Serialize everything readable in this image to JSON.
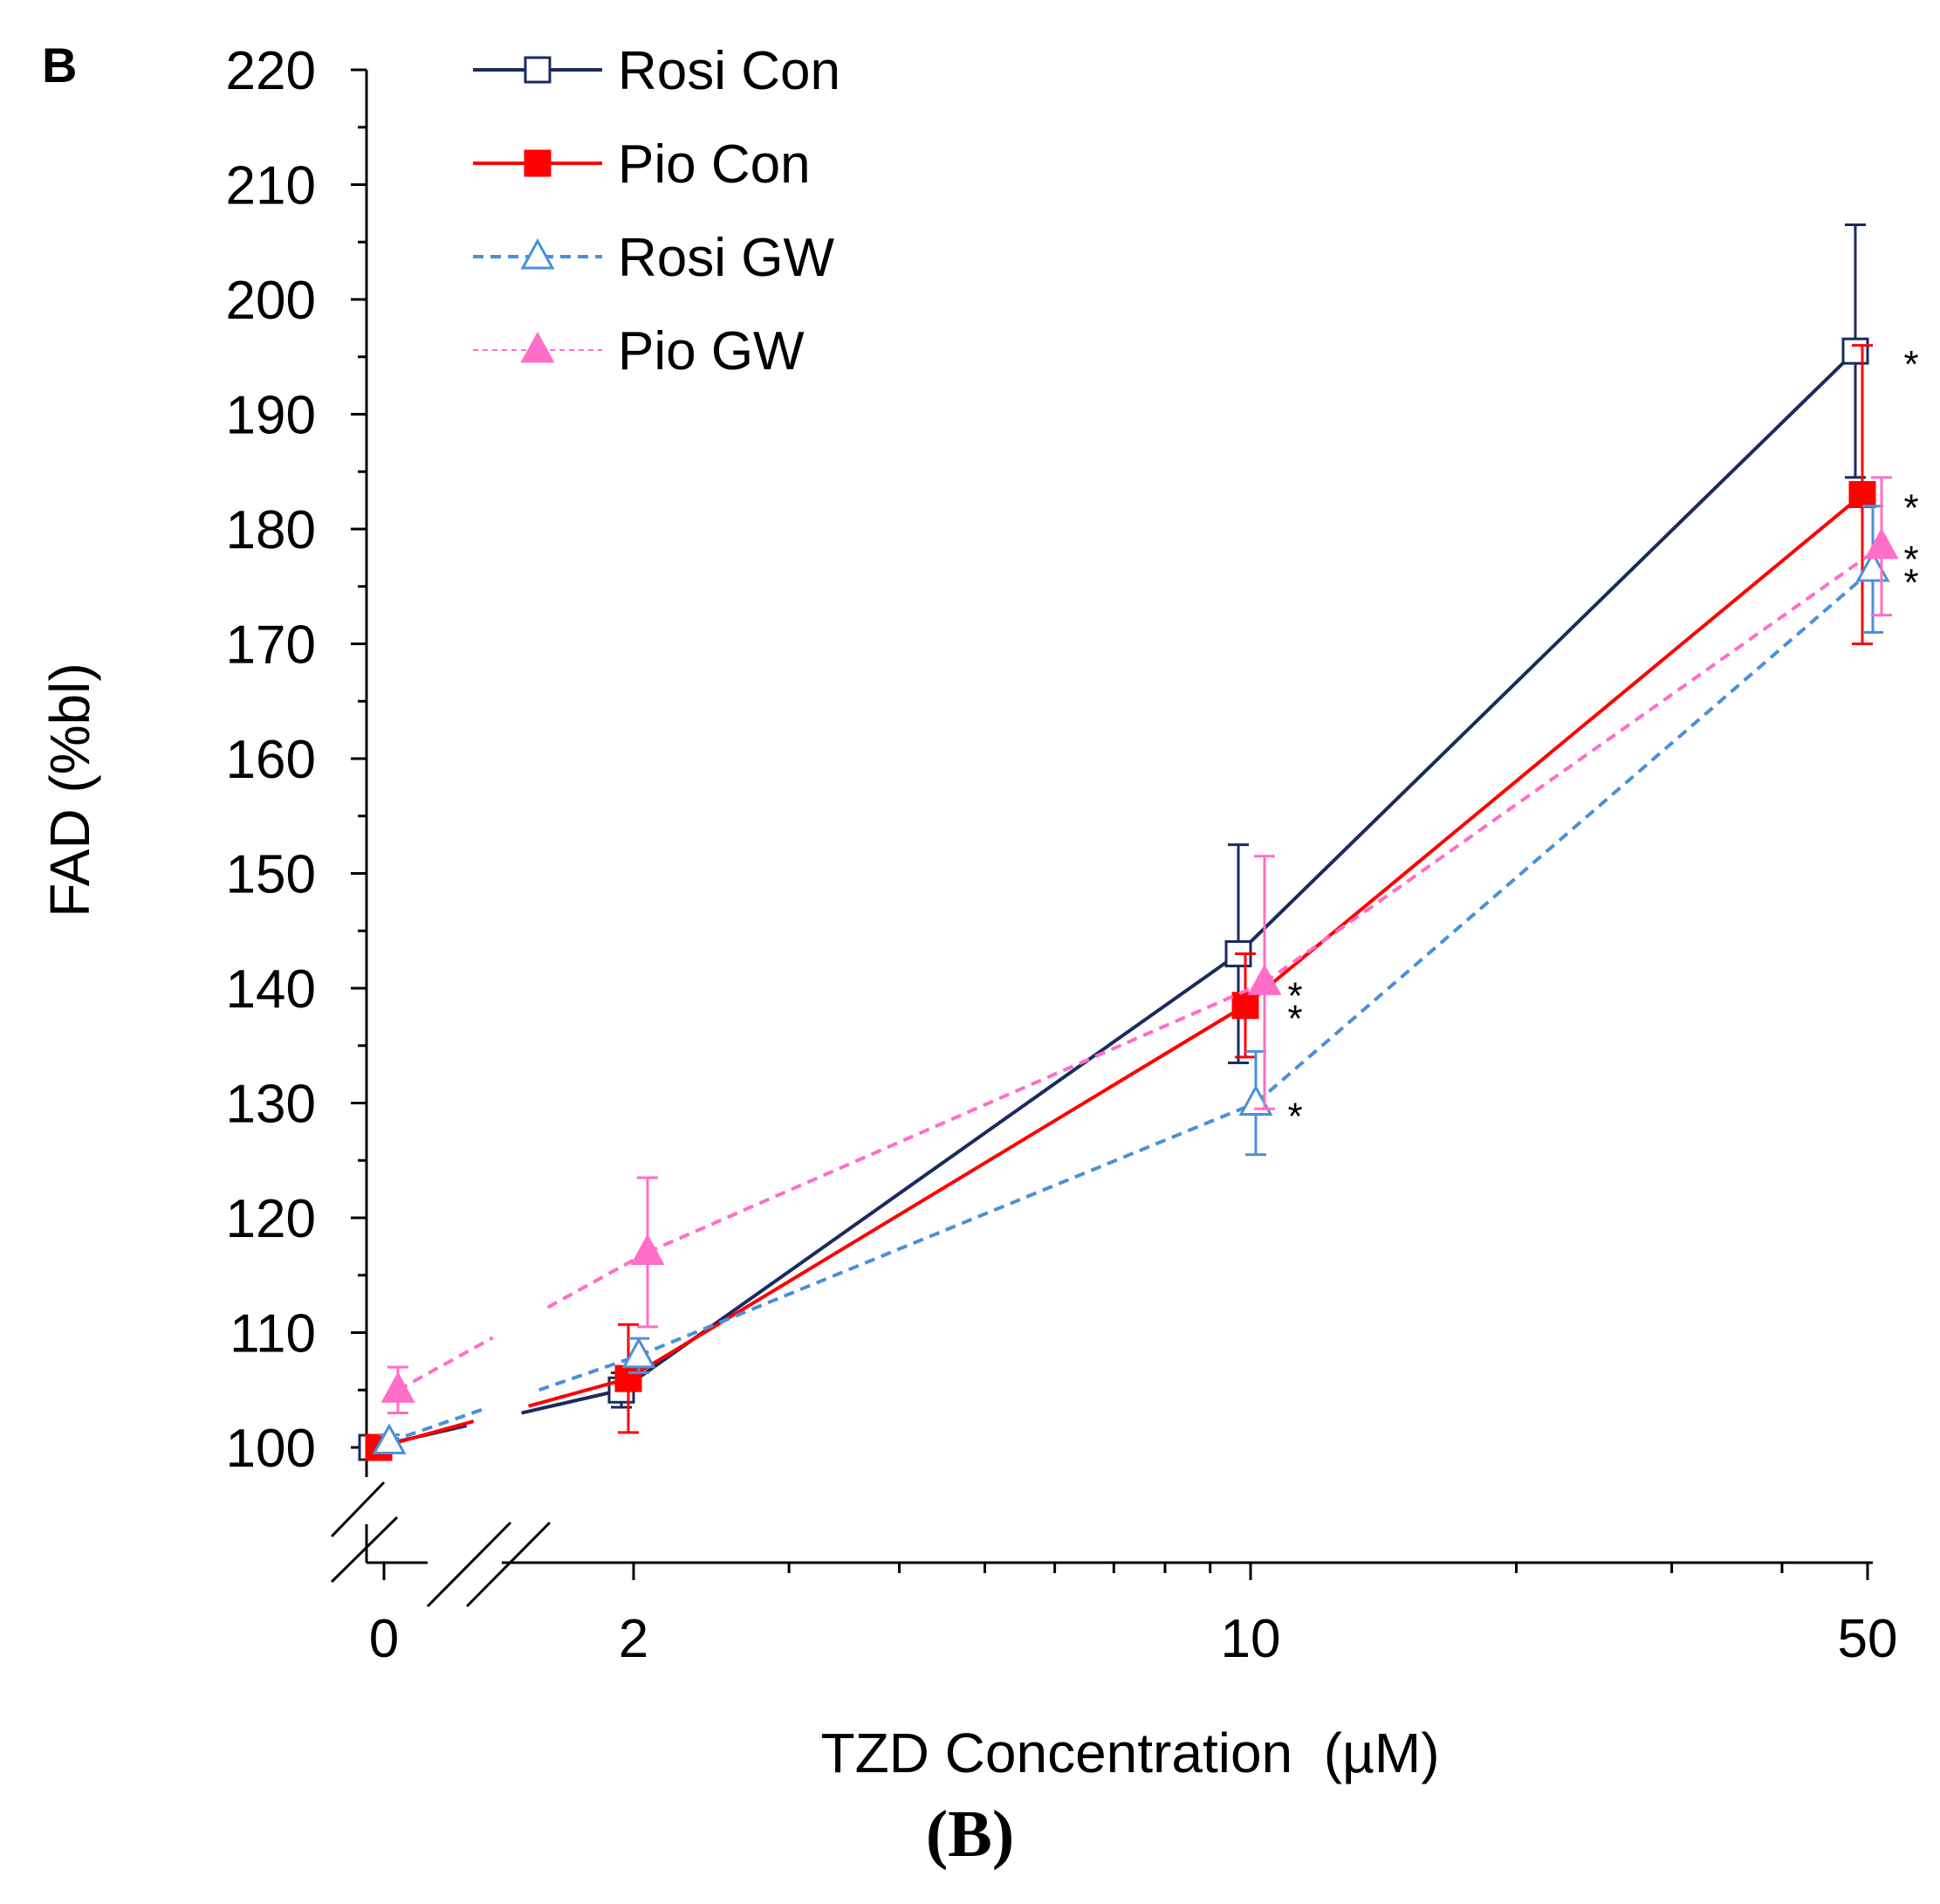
{
  "panel_letter": "B",
  "caption": "(B)",
  "colors": {
    "rosi_con": "#1a2b5f",
    "pio_con": "#ff0000",
    "rosi_gw": "#4a90d9",
    "pio_gw": "#ff6ec7"
  },
  "chart_data": {
    "type": "line",
    "title": "",
    "xlabel": "TZD Concentration  (µM)",
    "ylabel": "FAD (%bl)",
    "x_scale": "log with broken axis (0 shown before break)",
    "x_tick_labels": [
      "0",
      "2",
      "10",
      "50"
    ],
    "y_ticks": [
      100,
      110,
      120,
      130,
      140,
      150,
      160,
      170,
      180,
      190,
      200,
      210,
      220
    ],
    "ylim": [
      90,
      220
    ],
    "legend_position": "top-left",
    "significance_marker": "*",
    "series": [
      {
        "name": "Rosi Con",
        "key": "rosi_con",
        "marker": "square-open",
        "line": "solid",
        "x": [
          0,
          2,
          10,
          50
        ],
        "y": [
          100,
          105,
          143,
          195.5
        ],
        "err": [
          0.6,
          1.5,
          9.5,
          11
        ],
        "stars": [
          false,
          false,
          false,
          true
        ]
      },
      {
        "name": "Pio Con",
        "key": "pio_con",
        "marker": "square-filled",
        "line": "solid",
        "x": [
          0,
          2,
          10,
          50
        ],
        "y": [
          100,
          106,
          138.5,
          183
        ],
        "err": [
          0.6,
          4.7,
          4.5,
          13
        ],
        "stars": [
          false,
          false,
          true,
          true
        ]
      },
      {
        "name": "Rosi GW",
        "key": "rosi_gw",
        "marker": "triangle-open",
        "line": "dashed",
        "x": [
          0,
          2,
          10,
          50
        ],
        "y": [
          100.5,
          108,
          130,
          176.5
        ],
        "err": [
          0.6,
          1.5,
          4.5,
          5.5
        ],
        "stars": [
          false,
          false,
          true,
          true
        ]
      },
      {
        "name": "Pio GW",
        "key": "pio_gw",
        "marker": "triangle-filled",
        "line": "dashed",
        "x": [
          0,
          2,
          10,
          50
        ],
        "y": [
          105,
          117,
          140.5,
          178.5
        ],
        "err": [
          2,
          6.5,
          11,
          6
        ],
        "stars": [
          false,
          false,
          true,
          true
        ]
      }
    ]
  }
}
